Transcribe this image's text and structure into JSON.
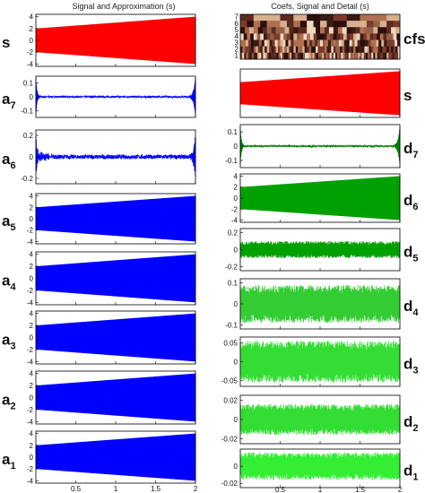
{
  "chart_data": {
    "type": "wavelet-decomposition",
    "columns": [
      {
        "title": "Signal and Approximation (s)"
      },
      {
        "title": "Coefs, Signal and Detail (s)"
      }
    ],
    "x_range": [
      0,
      2
    ],
    "x_ticks": [
      "0.5",
      "1",
      "1.5",
      "2"
    ],
    "cfs_scale_labels": [
      "7",
      "6",
      "5",
      "4",
      "3",
      "2",
      "1"
    ],
    "panels": [
      {
        "col": 0,
        "row": 0,
        "label": "s",
        "sub": "",
        "color": "#ff0000",
        "style": "ramp",
        "amp_start": 2,
        "amp_end": 4,
        "yticks": [
          "4",
          "2",
          "0",
          "-2",
          "-4"
        ],
        "ylim": [
          -4.4,
          4.4
        ]
      },
      {
        "col": 0,
        "row": 1,
        "label": "a",
        "sub": "7",
        "color": "#0000ff",
        "style": "edge",
        "amp": 0.14,
        "yticks": [
          "0.1",
          "0",
          "-0.1"
        ],
        "ylim": [
          -0.15,
          0.15
        ]
      },
      {
        "col": 0,
        "row": 2,
        "label": "a",
        "sub": "6",
        "color": "#0000ff",
        "style": "edge2",
        "amp": 0.2,
        "yticks": [
          "0.2",
          "0",
          "-0.2"
        ],
        "ylim": [
          -0.25,
          0.25
        ]
      },
      {
        "col": 0,
        "row": 3,
        "label": "a",
        "sub": "5",
        "color": "#0000ff",
        "style": "ramp",
        "amp_start": 2,
        "amp_end": 4,
        "yticks": [
          "4",
          "2",
          "0",
          "-2",
          "-4"
        ],
        "ylim": [
          -4.4,
          4.4
        ]
      },
      {
        "col": 0,
        "row": 4,
        "label": "a",
        "sub": "4",
        "color": "#0000ff",
        "style": "ramp",
        "amp_start": 2,
        "amp_end": 4,
        "yticks": [
          "4",
          "2",
          "0",
          "-2",
          "-4"
        ],
        "ylim": [
          -4.4,
          4.4
        ]
      },
      {
        "col": 0,
        "row": 5,
        "label": "a",
        "sub": "3",
        "color": "#0000ff",
        "style": "ramp",
        "amp_start": 2,
        "amp_end": 4,
        "yticks": [
          "4",
          "2",
          "0",
          "-2",
          "-4"
        ],
        "ylim": [
          -4.4,
          4.4
        ]
      },
      {
        "col": 0,
        "row": 6,
        "label": "a",
        "sub": "2",
        "color": "#0000ff",
        "style": "ramp",
        "amp_start": 2,
        "amp_end": 4,
        "yticks": [
          "4",
          "2",
          "0",
          "-2",
          "-4"
        ],
        "ylim": [
          -4.4,
          4.4
        ]
      },
      {
        "col": 0,
        "row": 7,
        "label": "a",
        "sub": "1",
        "color": "#0000ff",
        "style": "ramp",
        "amp_start": 2,
        "amp_end": 4,
        "yticks": [
          "4",
          "2",
          "0",
          "-2",
          "-4"
        ],
        "ylim": [
          -4.4,
          4.4
        ]
      },
      {
        "col": 1,
        "row": 0,
        "label": "cfs",
        "sub": "",
        "color": "#7a3b2c",
        "style": "cfs",
        "yticks": [],
        "ylim": [
          0,
          1
        ]
      },
      {
        "col": 1,
        "row": 1,
        "label": "s",
        "sub": "",
        "color": "#ff0000",
        "style": "ramp",
        "amp_start": 2,
        "amp_end": 4,
        "yticks": [],
        "ylim": [
          -4.4,
          4.4
        ]
      },
      {
        "col": 1,
        "row": 2,
        "label": "d",
        "sub": "7",
        "color": "#008000",
        "style": "edge",
        "amp": 0.14,
        "yticks": [
          "0.1",
          "0",
          "-0.1"
        ],
        "ylim": [
          -0.15,
          0.15
        ]
      },
      {
        "col": 1,
        "row": 3,
        "label": "d",
        "sub": "6",
        "color": "#00a000",
        "style": "ramp",
        "amp_start": 2,
        "amp_end": 4,
        "yticks": [
          "4",
          "2",
          "0",
          "-2",
          "-4"
        ],
        "ylim": [
          -4.4,
          4.4
        ]
      },
      {
        "col": 1,
        "row": 4,
        "label": "d",
        "sub": "5",
        "color": "#00a000",
        "style": "noise",
        "amp": 0.1,
        "yticks": [
          "0.2",
          "0",
          "-0.2"
        ],
        "ylim": [
          -0.25,
          0.25
        ]
      },
      {
        "col": 1,
        "row": 5,
        "label": "d",
        "sub": "4",
        "color": "#33cc33",
        "style": "noise",
        "amp": 0.09,
        "yticks": [
          "0.1",
          "0",
          "-0.1"
        ],
        "ylim": [
          -0.12,
          0.12
        ]
      },
      {
        "col": 1,
        "row": 6,
        "label": "d",
        "sub": "3",
        "color": "#33dd33",
        "style": "noise",
        "amp": 0.055,
        "yticks": [
          "0.05",
          "0",
          "-0.05"
        ],
        "ylim": [
          -0.065,
          0.065
        ]
      },
      {
        "col": 1,
        "row": 7,
        "label": "d",
        "sub": "2",
        "color": "#33dd33",
        "style": "noise",
        "amp": 0.016,
        "yticks": [
          "0.02",
          "0",
          "-0.02"
        ],
        "ylim": [
          -0.025,
          0.025
        ]
      },
      {
        "col": 1,
        "row": 8,
        "label": "d",
        "sub": "1",
        "color": "#33ee33",
        "style": "noise",
        "amp": 0.016,
        "yticks": [
          "0",
          "-0.02"
        ],
        "ylim": [
          -0.025,
          0.02
        ]
      }
    ]
  }
}
